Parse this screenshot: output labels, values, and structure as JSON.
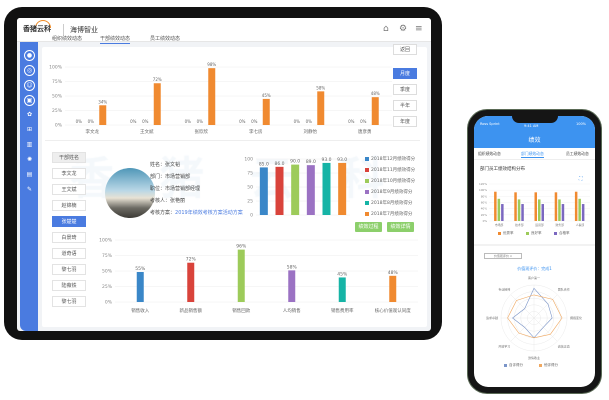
{
  "tablet": {
    "logo_text": "香猪云科",
    "app_title": "海博智业",
    "header_icons": [
      "home-icon",
      "gear-icon",
      "menu-icon"
    ],
    "sidebar_icons": [
      "avatar-icon",
      "user-circle-icon",
      "user-icon",
      "building-icon",
      "settings-icon",
      "org-chart-icon",
      "chart-icon",
      "gear-icon",
      "folder-edit-icon",
      "edit-icon"
    ],
    "tabs": [
      {
        "label": "组织绩效动态",
        "active": false
      },
      {
        "label": "干部绩效动态",
        "active": true
      },
      {
        "label": "员工绩效动态",
        "active": false
      }
    ],
    "back_label": "返回",
    "period_buttons": [
      {
        "label": "月度",
        "active": true
      },
      {
        "label": "季度",
        "active": false
      },
      {
        "label": "半年",
        "active": false
      },
      {
        "label": "年度",
        "active": false
      }
    ],
    "list_header": "干部姓名",
    "list_items": [
      {
        "label": "李文龙",
        "active": false
      },
      {
        "label": "王文斌",
        "active": false
      },
      {
        "label": "赵锦楠",
        "active": false
      },
      {
        "label": "张楚楚",
        "active": true
      },
      {
        "label": "白景琦",
        "active": false
      },
      {
        "label": "道奇语",
        "active": false
      },
      {
        "label": "黎七羽",
        "active": false
      },
      {
        "label": "陆薇铁",
        "active": false
      },
      {
        "label": "黎七羽",
        "active": false
      }
    ],
    "profile": {
      "name": "姓名：张文韬",
      "dept": "部门：市场营销部",
      "position": "职位：市场营销部经理",
      "assessor": "考核人：张艳丽",
      "plan_label": "考核方案：",
      "plan_link": "2019年绩效考核方案活动方案"
    },
    "buttons": {
      "process": "绩效过程",
      "detail": "绩效详情"
    }
  },
  "chart_data": [
    {
      "type": "bar",
      "categories": [
        "李文龙",
        "王文斌",
        "张欣欣",
        "李七房",
        "刘静怡",
        "唐彦勇"
      ],
      "series": [
        {
          "values": [
            0,
            0,
            0,
            0,
            0,
            0
          ]
        },
        {
          "values": [
            0,
            0,
            0,
            0,
            0,
            0
          ]
        },
        {
          "values": [
            34,
            72,
            98,
            45,
            58,
            48
          ]
        }
      ],
      "value_labels": [
        [
          "0%",
          "0%",
          "34%"
        ],
        [
          "0%",
          "0%",
          "72%"
        ],
        [
          "0%",
          "0%",
          "98%"
        ],
        [
          "0%",
          "0%",
          "45%"
        ],
        [
          "0%",
          "0%",
          "58%"
        ],
        [
          "0%",
          "0%",
          "48%"
        ]
      ],
      "yticks": [
        "0%",
        "25%",
        "50%",
        "75%",
        "100%"
      ],
      "ylim": [
        0,
        100
      ],
      "color": "#f08a30"
    },
    {
      "type": "bar",
      "categories": [
        "2018年12月绩效得分",
        "2018年11月绩效得分",
        "2018年10月绩效得分",
        "2018年9月绩效得分",
        "2018年8月绩效得分",
        "2018年7月绩效得分"
      ],
      "values": [
        85.0,
        86.0,
        90.0,
        89.0,
        93.0,
        93.0
      ],
      "value_labels": [
        "85.0",
        "86.0",
        "90.0",
        "89.0",
        "93.0",
        "93.0"
      ],
      "colors": [
        "#3a87c8",
        "#d9433b",
        "#9dcb5a",
        "#9b72c3",
        "#16b4a6",
        "#f08a30"
      ],
      "yticks": [
        "0",
        "25",
        "50",
        "75",
        "100"
      ],
      "ylim": [
        0,
        100
      ],
      "legend": "right"
    },
    {
      "type": "bar",
      "categories": [
        "销售收入",
        "新品销售额",
        "销售回款",
        "人均销售",
        "销售费用率",
        "核心价值观认同度"
      ],
      "values": [
        55,
        72,
        96,
        58,
        45,
        48
      ],
      "value_labels": [
        "55%",
        "72%",
        "96%",
        "58%",
        "45%",
        "48%"
      ],
      "colors": [
        "#3a87c8",
        "#d9433b",
        "#9dcb5a",
        "#9b72c3",
        "#16b4a6",
        "#f08a30"
      ],
      "yticks": [
        "0%",
        "25%",
        "50%",
        "75%",
        "100%"
      ],
      "ylim": [
        0,
        100
      ]
    },
    {
      "type": "bar",
      "categories": [
        "市场部",
        "技术部",
        "运营部",
        "财务部",
        "人事部"
      ],
      "series": [
        {
          "name": "优秀率",
          "values": [
            95,
            93,
            93,
            93,
            95
          ]
        },
        {
          "name": "良好率",
          "values": [
            72,
            70,
            70,
            70,
            72
          ]
        },
        {
          "name": "合格率",
          "values": [
            55,
            55,
            55,
            55,
            55
          ]
        }
      ],
      "colors": [
        "#f08a30",
        "#9dcb5a",
        "#7b68c0"
      ],
      "yticks": [
        "0%",
        "20%",
        "40%",
        "60%",
        "80%",
        "100%",
        "120%"
      ],
      "ylim": [
        0,
        120
      ],
      "title": "部门员工绩效结构分布"
    },
    {
      "type": "radar",
      "title": "价值观评价：完成1",
      "axes": [
        "客户第一",
        "团队合作",
        "拥抱变化",
        "诚信正直",
        "激情敬业",
        "开放学习",
        "追求卓越",
        "专业精神"
      ],
      "series": [
        {
          "name": "自评得分",
          "values": [
            90,
            60,
            55,
            40,
            60,
            40,
            65,
            40
          ]
        },
        {
          "name": "他评得分",
          "values": [
            70,
            80,
            85,
            70,
            60,
            65,
            80,
            75
          ]
        }
      ],
      "colors": [
        "#7b95c8",
        "#f0a860"
      ],
      "range": [
        0,
        100
      ]
    }
  ],
  "phone": {
    "status_left": "Ross Sprint",
    "status_time": "9:41 AM",
    "status_right": "100%",
    "title": "绩效",
    "tabs": [
      {
        "label": "组织绩效动态",
        "active": false
      },
      {
        "label": "部门绩效动态",
        "active": true
      },
      {
        "label": "员工绩效动态",
        "active": false
      }
    ],
    "chart_title": "部门员工绩效结构分布",
    "dropdown": "价值观评价"
  },
  "watermark": "香猪云科"
}
